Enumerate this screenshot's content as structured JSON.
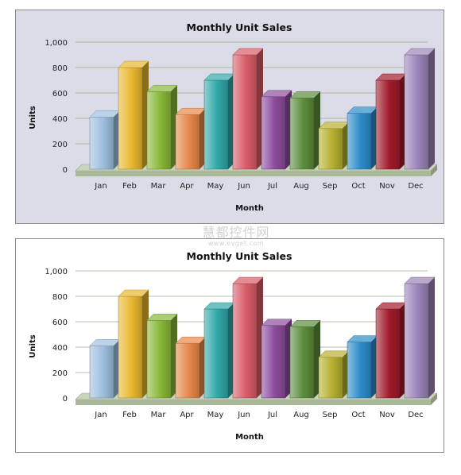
{
  "panels": [
    {
      "background": "#dcdce8"
    },
    {
      "background": "#ffffff"
    }
  ],
  "chart_data": [
    {
      "type": "bar",
      "title": "Monthly Unit Sales",
      "xlabel": "Month",
      "ylabel": "Units",
      "categories": [
        "Jan",
        "Feb",
        "Mar",
        "Apr",
        "May",
        "Jun",
        "Jul",
        "Aug",
        "Sep",
        "Oct",
        "Nov",
        "Dec"
      ],
      "values": [
        410,
        800,
        610,
        430,
        700,
        900,
        570,
        560,
        320,
        440,
        700,
        900
      ],
      "ylim": [
        0,
        1000
      ],
      "yticks": [
        0,
        200,
        400,
        600,
        800,
        1000
      ],
      "ytick_labels": [
        "0",
        "200",
        "400",
        "600",
        "800",
        "1,000"
      ],
      "grid": true,
      "style": "3d"
    },
    {
      "type": "bar",
      "title": "Monthly Unit Sales",
      "xlabel": "Month",
      "ylabel": "Units",
      "categories": [
        "Jan",
        "Feb",
        "Mar",
        "Apr",
        "May",
        "Jun",
        "Jul",
        "Aug",
        "Sep",
        "Oct",
        "Nov",
        "Dec"
      ],
      "values": [
        410,
        800,
        610,
        430,
        700,
        900,
        570,
        560,
        320,
        440,
        700,
        900
      ],
      "ylim": [
        0,
        1000
      ],
      "yticks": [
        0,
        200,
        400,
        600,
        800,
        1000
      ],
      "ytick_labels": [
        "0",
        "200",
        "400",
        "600",
        "800",
        "1,000"
      ],
      "grid": true,
      "style": "3d"
    }
  ],
  "bar_colors": [
    "#9fbfe0",
    "#e8b830",
    "#88b838",
    "#e8884a",
    "#30a8a8",
    "#d85c68",
    "#8c4c9c",
    "#5c8c3c",
    "#b8b030",
    "#2c8cc8",
    "#a01c2c",
    "#9c84b8"
  ],
  "watermark": {
    "line1": "慧都控件网",
    "line2": "www.evget.com"
  }
}
